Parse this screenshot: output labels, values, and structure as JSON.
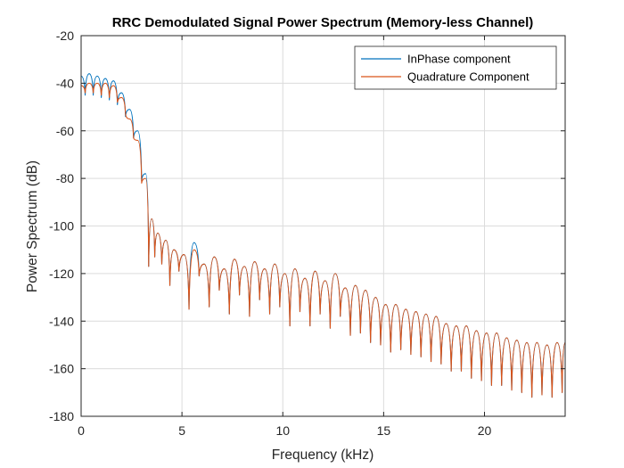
{
  "chart_data": {
    "type": "line",
    "title": "RRC Demodulated Signal Power Spectrum (Memory-less Channel)",
    "xlabel": "Frequency (kHz)",
    "ylabel": "Power Spectrum (dB)",
    "xlim": [
      0,
      24
    ],
    "ylim": [
      -180,
      -20
    ],
    "xticks": [
      0,
      5,
      10,
      15,
      20
    ],
    "yticks": [
      -20,
      -40,
      -60,
      -80,
      -100,
      -120,
      -140,
      -160,
      -180
    ],
    "grid": true,
    "legend_position": "top-right",
    "series": [
      {
        "name": "InPhase component",
        "color": "#0072BD",
        "peaks": [
          [
            0.0,
            -37
          ],
          [
            0.4,
            -36
          ],
          [
            0.8,
            -37
          ],
          [
            1.2,
            -38
          ],
          [
            1.6,
            -39
          ],
          [
            2.0,
            -44
          ],
          [
            2.4,
            -51
          ],
          [
            2.8,
            -60
          ],
          [
            3.2,
            -78
          ],
          [
            3.5,
            -97
          ],
          [
            3.8,
            -103
          ],
          [
            4.2,
            -106
          ],
          [
            4.6,
            -110
          ],
          [
            5.1,
            -112
          ],
          [
            5.6,
            -107
          ],
          [
            6.1,
            -116
          ],
          [
            6.6,
            -113
          ],
          [
            7.1,
            -118
          ],
          [
            7.6,
            -114
          ],
          [
            8.1,
            -117
          ],
          [
            8.6,
            -115
          ],
          [
            9.1,
            -118
          ],
          [
            9.6,
            -116
          ],
          [
            10.1,
            -120
          ],
          [
            10.6,
            -118
          ],
          [
            11.1,
            -122
          ],
          [
            11.6,
            -119
          ],
          [
            12.1,
            -123
          ],
          [
            12.6,
            -120
          ],
          [
            13.1,
            -126
          ],
          [
            13.6,
            -125
          ],
          [
            14.1,
            -127
          ],
          [
            14.6,
            -130
          ],
          [
            15.1,
            -133
          ],
          [
            15.6,
            -133
          ],
          [
            16.1,
            -135
          ],
          [
            16.6,
            -136
          ],
          [
            17.1,
            -137
          ],
          [
            17.6,
            -138
          ],
          [
            18.1,
            -141
          ],
          [
            18.6,
            -142
          ],
          [
            19.1,
            -142
          ],
          [
            19.6,
            -144
          ],
          [
            20.1,
            -145
          ],
          [
            20.6,
            -145
          ],
          [
            21.1,
            -147
          ],
          [
            21.6,
            -148
          ],
          [
            22.1,
            -149
          ],
          [
            22.6,
            -149
          ],
          [
            23.1,
            -150
          ],
          [
            23.6,
            -149
          ],
          [
            24.0,
            -149
          ]
        ],
        "nulls": [
          [
            0.2,
            -45
          ],
          [
            0.6,
            -45
          ],
          [
            1.0,
            -46
          ],
          [
            1.4,
            -47
          ],
          [
            1.8,
            -49
          ],
          [
            2.2,
            -54
          ],
          [
            2.6,
            -63
          ],
          [
            3.0,
            -81
          ],
          [
            3.35,
            -117
          ],
          [
            3.65,
            -113
          ],
          [
            4.0,
            -116
          ],
          [
            4.4,
            -125
          ],
          [
            4.85,
            -119
          ],
          [
            5.35,
            -135
          ],
          [
            5.85,
            -121
          ],
          [
            6.35,
            -134
          ],
          [
            6.85,
            -127
          ],
          [
            7.35,
            -137
          ],
          [
            7.85,
            -129
          ],
          [
            8.35,
            -138
          ],
          [
            8.85,
            -131
          ],
          [
            9.35,
            -137
          ],
          [
            9.85,
            -134
          ],
          [
            10.35,
            -142
          ],
          [
            10.85,
            -136
          ],
          [
            11.35,
            -142
          ],
          [
            11.85,
            -137
          ],
          [
            12.35,
            -143
          ],
          [
            12.85,
            -138
          ],
          [
            13.35,
            -146
          ],
          [
            13.85,
            -145
          ],
          [
            14.35,
            -149
          ],
          [
            14.85,
            -150
          ],
          [
            15.35,
            -153
          ],
          [
            15.85,
            -152
          ],
          [
            16.35,
            -154
          ],
          [
            16.85,
            -155
          ],
          [
            17.35,
            -157
          ],
          [
            17.85,
            -158
          ],
          [
            18.35,
            -161
          ],
          [
            18.85,
            -161
          ],
          [
            19.35,
            -164
          ],
          [
            19.85,
            -165
          ],
          [
            20.35,
            -167
          ],
          [
            20.85,
            -167
          ],
          [
            21.35,
            -169
          ],
          [
            21.85,
            -170
          ],
          [
            22.35,
            -172
          ],
          [
            22.85,
            -171
          ],
          [
            23.35,
            -172
          ],
          [
            23.85,
            -170
          ]
        ]
      },
      {
        "name": "Quadrature Component",
        "color": "#D95319",
        "peaks": [
          [
            0.0,
            -41
          ],
          [
            0.4,
            -40
          ],
          [
            0.8,
            -40
          ],
          [
            1.2,
            -40
          ],
          [
            1.6,
            -41
          ],
          [
            2.0,
            -46
          ],
          [
            2.4,
            -55
          ],
          [
            2.8,
            -64
          ],
          [
            3.2,
            -80
          ],
          [
            3.5,
            -97
          ],
          [
            3.8,
            -103
          ],
          [
            4.2,
            -106
          ],
          [
            4.6,
            -110
          ],
          [
            5.1,
            -112
          ],
          [
            5.6,
            -110
          ],
          [
            6.1,
            -116
          ],
          [
            6.6,
            -113
          ],
          [
            7.1,
            -118
          ],
          [
            7.6,
            -114
          ],
          [
            8.1,
            -117
          ],
          [
            8.6,
            -115
          ],
          [
            9.1,
            -118
          ],
          [
            9.6,
            -116
          ],
          [
            10.1,
            -120
          ],
          [
            10.6,
            -118
          ],
          [
            11.1,
            -122
          ],
          [
            11.6,
            -119
          ],
          [
            12.1,
            -123
          ],
          [
            12.6,
            -120
          ],
          [
            13.1,
            -126
          ],
          [
            13.6,
            -125
          ],
          [
            14.1,
            -127
          ],
          [
            14.6,
            -130
          ],
          [
            15.1,
            -133
          ],
          [
            15.6,
            -133
          ],
          [
            16.1,
            -135
          ],
          [
            16.6,
            -136
          ],
          [
            17.1,
            -137
          ],
          [
            17.6,
            -138
          ],
          [
            18.1,
            -141
          ],
          [
            18.6,
            -142
          ],
          [
            19.1,
            -142
          ],
          [
            19.6,
            -144
          ],
          [
            20.1,
            -145
          ],
          [
            20.6,
            -145
          ],
          [
            21.1,
            -147
          ],
          [
            21.6,
            -148
          ],
          [
            22.1,
            -149
          ],
          [
            22.6,
            -149
          ],
          [
            23.1,
            -150
          ],
          [
            23.6,
            -149
          ],
          [
            24.0,
            -149
          ]
        ],
        "nulls": [
          [
            0.2,
            -44
          ],
          [
            0.6,
            -44
          ],
          [
            1.0,
            -45
          ],
          [
            1.4,
            -46
          ],
          [
            1.8,
            -48
          ],
          [
            2.2,
            -53
          ],
          [
            2.6,
            -63
          ],
          [
            3.0,
            -82
          ],
          [
            3.35,
            -117
          ],
          [
            3.65,
            -113
          ],
          [
            4.0,
            -116
          ],
          [
            4.4,
            -125
          ],
          [
            4.85,
            -119
          ],
          [
            5.35,
            -135
          ],
          [
            5.85,
            -121
          ],
          [
            6.35,
            -134
          ],
          [
            6.85,
            -127
          ],
          [
            7.35,
            -137
          ],
          [
            7.85,
            -129
          ],
          [
            8.35,
            -138
          ],
          [
            8.85,
            -131
          ],
          [
            9.35,
            -137
          ],
          [
            9.85,
            -134
          ],
          [
            10.35,
            -142
          ],
          [
            10.85,
            -136
          ],
          [
            11.35,
            -142
          ],
          [
            11.85,
            -137
          ],
          [
            12.35,
            -143
          ],
          [
            12.85,
            -138
          ],
          [
            13.35,
            -146
          ],
          [
            13.85,
            -145
          ],
          [
            14.35,
            -149
          ],
          [
            14.85,
            -150
          ],
          [
            15.35,
            -153
          ],
          [
            15.85,
            -152
          ],
          [
            16.35,
            -154
          ],
          [
            16.85,
            -155
          ],
          [
            17.35,
            -157
          ],
          [
            17.85,
            -158
          ],
          [
            18.35,
            -161
          ],
          [
            18.85,
            -161
          ],
          [
            19.35,
            -164
          ],
          [
            19.85,
            -165
          ],
          [
            20.35,
            -167
          ],
          [
            20.85,
            -167
          ],
          [
            21.35,
            -169
          ],
          [
            21.85,
            -170
          ],
          [
            22.35,
            -172
          ],
          [
            22.85,
            -171
          ],
          [
            23.35,
            -172
          ],
          [
            23.85,
            -170
          ]
        ]
      }
    ]
  }
}
